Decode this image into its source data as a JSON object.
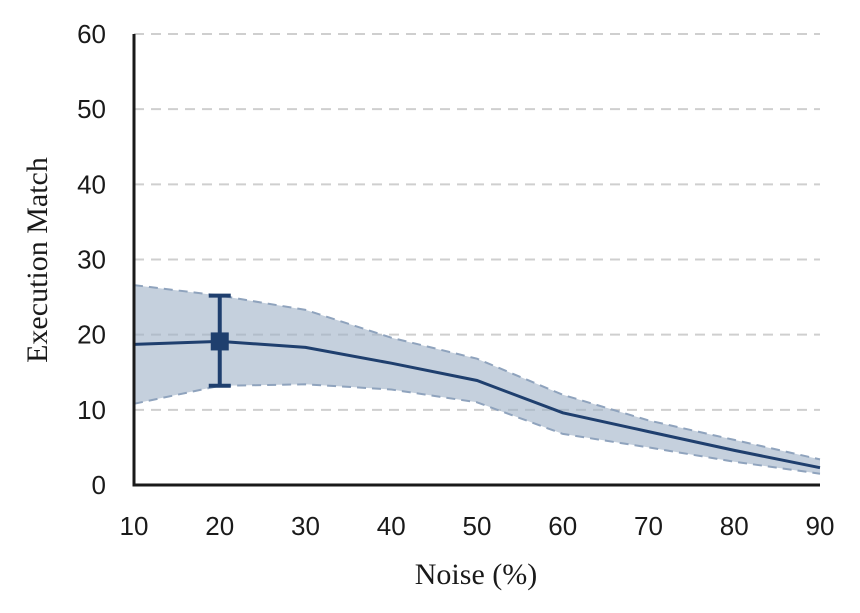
{
  "chart_data": {
    "type": "line",
    "title": "",
    "xlabel": "Noise (%)",
    "ylabel": "Execution Match",
    "xlim": [
      10,
      90
    ],
    "ylim": [
      0,
      60
    ],
    "x_ticks": [
      10,
      20,
      30,
      40,
      50,
      60,
      70,
      80,
      90
    ],
    "y_ticks": [
      0,
      10,
      20,
      30,
      40,
      50,
      60
    ],
    "grid": "horizontal dashed",
    "series": [
      {
        "x": [
          10,
          20,
          30,
          40,
          50,
          60,
          70,
          80,
          90
        ],
        "mean": [
          18.7,
          19.1,
          18.3,
          16.2,
          13.9,
          9.6,
          7.1,
          4.6,
          2.3
        ],
        "upper": [
          26.6,
          25.2,
          23.3,
          19.6,
          16.8,
          12.0,
          8.6,
          6.0,
          3.4
        ],
        "lower": [
          10.8,
          13.2,
          13.4,
          12.7,
          11.0,
          6.8,
          5.0,
          3.1,
          1.5
        ],
        "color": "#1f3f6e",
        "band_color": "#9fb0c6"
      }
    ],
    "marker": {
      "x": 20,
      "y": 19.1,
      "err_low": 13.2,
      "err_high": 25.2
    }
  }
}
